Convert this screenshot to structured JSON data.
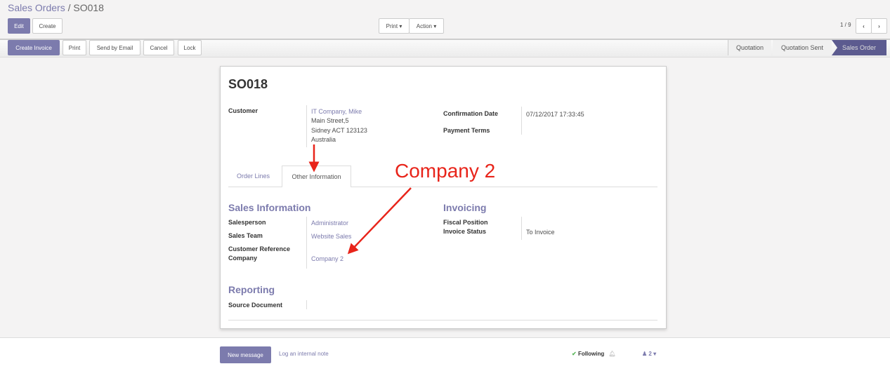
{
  "breadcrumb": {
    "parent": "Sales Orders",
    "separator": "/",
    "current": "SO018"
  },
  "toolbar": {
    "edit": "Edit",
    "create": "Create",
    "print": "Print",
    "action": "Action",
    "pager": "1 / 9"
  },
  "statusbar": {
    "buttons": [
      "Create Invoice",
      "Print",
      "Send by Email",
      "Cancel",
      "Lock"
    ],
    "stages": [
      "Quotation",
      "Quotation Sent",
      "Sales Order"
    ],
    "active_stage": "Sales Order"
  },
  "form": {
    "title": "SO018",
    "customer_label": "Customer",
    "customer_name": "IT Company, Mike",
    "address": [
      "Main Street,5",
      "Sidney ACT 123123",
      "Australia"
    ],
    "confirmation_date_label": "Confirmation Date",
    "confirmation_date": "07/12/2017 17:33:45",
    "payment_terms_label": "Payment Terms",
    "tabs": [
      "Order Lines",
      "Other Information"
    ],
    "active_tab": "Other Information",
    "sales_info": {
      "title": "Sales Information",
      "salesperson_label": "Salesperson",
      "salesperson": "Administrator",
      "team_label": "Sales Team",
      "team": "Website Sales",
      "ref_label": "Customer Reference",
      "company_label": "Company",
      "company": "Company 2"
    },
    "invoicing": {
      "title": "Invoicing",
      "fiscal_label": "Fiscal Position",
      "status_label": "Invoice Status",
      "status": "To Invoice"
    },
    "reporting": {
      "title": "Reporting",
      "source_label": "Source Document"
    }
  },
  "annotation": {
    "text": "Company 2",
    "color": "#e8241a"
  },
  "chatter": {
    "new_message": "New message",
    "log_note": "Log an internal note",
    "following": "Following",
    "followers": "2"
  },
  "colors": {
    "accent": "#7c7bad"
  }
}
